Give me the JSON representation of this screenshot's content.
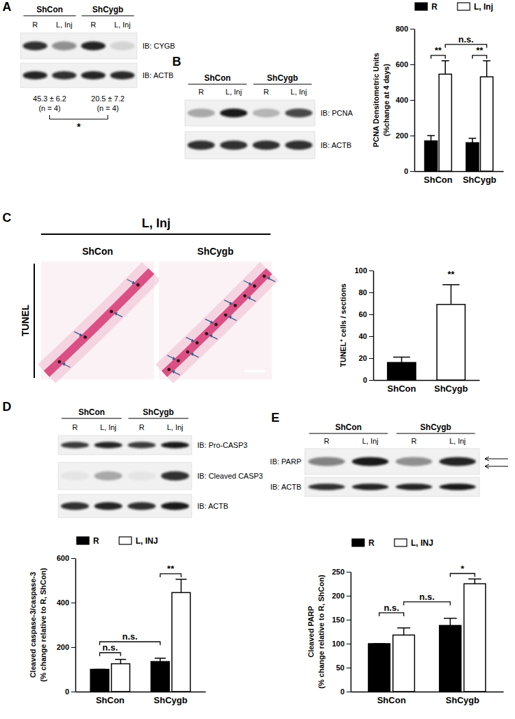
{
  "panels": {
    "A": {
      "letter": "A",
      "groups": [
        "ShCon",
        "ShCygb"
      ],
      "lanes": [
        "R",
        "L, Inj",
        "R",
        "L, Inj"
      ],
      "blots": [
        {
          "label": "IB: CYGB",
          "intensity": [
            0.85,
            0.45,
            0.9,
            0.12
          ]
        },
        {
          "label": "IB: ACTB",
          "intensity": [
            0.9,
            0.85,
            0.9,
            0.88
          ]
        }
      ],
      "stats": [
        {
          "value": "45.3 ± 6.2",
          "n": "(n = 4)"
        },
        {
          "value": "20.5 ± 7.2",
          "n": "(n = 4)"
        }
      ],
      "significance": "*"
    },
    "B": {
      "letter": "B",
      "groups": [
        "ShCon",
        "ShCygb"
      ],
      "lanes": [
        "R",
        "L, Inj",
        "R",
        "L, Inj"
      ],
      "blots": [
        {
          "label": "IB: PCNA",
          "intensity": [
            0.3,
            0.95,
            0.25,
            0.75
          ]
        },
        {
          "label": "IB: ACTB",
          "intensity": [
            0.85,
            0.85,
            0.85,
            0.85
          ]
        }
      ]
    },
    "C": {
      "letter": "C",
      "title": "L, Inj",
      "image_labels": [
        "ShCon",
        "ShCygb"
      ],
      "stain": "TUNEL",
      "marked_cells": [
        4,
        11
      ]
    },
    "D": {
      "letter": "D",
      "groups": [
        "ShCon",
        "ShCygb"
      ],
      "lanes": [
        "R",
        "L, Inj",
        "R",
        "L, Inj"
      ],
      "blots": [
        {
          "label": "IB: Pro-CASP3",
          "intensity": [
            0.8,
            0.9,
            0.8,
            0.95
          ]
        },
        {
          "label": "IB: Cleaved CASP3",
          "intensity": [
            0.05,
            0.3,
            0.05,
            0.85
          ]
        },
        {
          "label": "IB: ACTB",
          "intensity": [
            0.85,
            0.9,
            0.85,
            0.95
          ]
        }
      ]
    },
    "E": {
      "letter": "E",
      "groups": [
        "ShCon",
        "ShCygb"
      ],
      "lanes": [
        "R",
        "L, Inj",
        "R",
        "L, Inj"
      ],
      "blots": [
        {
          "label": "IB: PARP",
          "intensity": [
            0.5,
            0.95,
            0.45,
            0.9
          ]
        },
        {
          "label": "IB: ACTB",
          "intensity": [
            0.85,
            0.9,
            0.9,
            0.95
          ]
        }
      ]
    }
  },
  "chart_data": [
    {
      "type": "bar",
      "categories": [
        "ShCon",
        "ShCygb"
      ],
      "series": [
        {
          "name": "R",
          "color": "#000000",
          "values": [
            170,
            160
          ],
          "errors": [
            30,
            25
          ]
        },
        {
          "name": "L, Inj",
          "color": "#ffffff",
          "values": [
            545,
            530
          ],
          "errors": [
            75,
            90
          ]
        }
      ],
      "ylim": [
        0,
        800
      ],
      "yticks": [
        0,
        200,
        400,
        600,
        800
      ],
      "y_label": [
        "PCNA Densitometric Units",
        "(%change at 4 days)"
      ],
      "legend": "top",
      "annotations": [
        {
          "text": "**",
          "from": [
            0,
            0
          ],
          "to": [
            0,
            1
          ]
        },
        {
          "text": "**",
          "from": [
            1,
            0
          ],
          "to": [
            1,
            1
          ]
        },
        {
          "text": "n.s.",
          "from": [
            0,
            1
          ],
          "to": [
            1,
            1
          ]
        }
      ]
    },
    {
      "type": "bar",
      "categories": [
        "ShCon",
        "ShCygb"
      ],
      "values": [
        16,
        69
      ],
      "errors": [
        5,
        18
      ],
      "colors": [
        "#000000",
        "#ffffff"
      ],
      "ylim": [
        0,
        100
      ],
      "yticks": [
        0,
        20,
        40,
        60,
        80,
        100
      ],
      "y_label": [
        "TUNEL⁺ cells / sections"
      ],
      "annotations": [
        {
          "text": "**",
          "from": [
            1,
            0
          ],
          "to": [
            1,
            0
          ]
        }
      ]
    },
    {
      "type": "bar",
      "categories": [
        "ShCon",
        "ShCygb"
      ],
      "series": [
        {
          "name": "R",
          "color": "#000000",
          "values": [
            100,
            135
          ],
          "errors": [
            0,
            15
          ]
        },
        {
          "name": "L, INJ",
          "color": "#ffffff",
          "values": [
            125,
            445
          ],
          "errors": [
            20,
            60
          ]
        }
      ],
      "ylim": [
        0,
        600
      ],
      "yticks": [
        0,
        200,
        400,
        600
      ],
      "y_label": [
        "Cleaved caspase-3/caspase-3",
        "(% change relative to R, ShCon)"
      ],
      "legend": "top",
      "annotations": [
        {
          "text": "n.s.",
          "from": [
            0,
            0
          ],
          "to": [
            0,
            1
          ]
        },
        {
          "text": "n.s.",
          "from": [
            0,
            0
          ],
          "to": [
            1,
            0
          ]
        },
        {
          "text": "**",
          "from": [
            1,
            0
          ],
          "to": [
            1,
            1
          ]
        }
      ]
    },
    {
      "type": "bar",
      "categories": [
        "ShCon",
        "ShCygb"
      ],
      "series": [
        {
          "name": "R",
          "color": "#000000",
          "values": [
            100,
            138
          ],
          "errors": [
            0,
            15
          ]
        },
        {
          "name": "L, INJ",
          "color": "#ffffff",
          "values": [
            118,
            225
          ],
          "errors": [
            15,
            10
          ]
        }
      ],
      "ylim": [
        0,
        250
      ],
      "yticks": [
        0,
        50,
        100,
        150,
        200,
        250
      ],
      "y_label": [
        "Cleaved PARP",
        "(% change relative to R, ShCon)"
      ],
      "legend": "top",
      "annotations": [
        {
          "text": "n.s.",
          "from": [
            0,
            0
          ],
          "to": [
            0,
            1
          ]
        },
        {
          "text": "n.s.",
          "from": [
            0,
            1
          ],
          "to": [
            1,
            0
          ]
        },
        {
          "text": "*",
          "from": [
            1,
            0
          ],
          "to": [
            1,
            1
          ]
        }
      ]
    }
  ]
}
